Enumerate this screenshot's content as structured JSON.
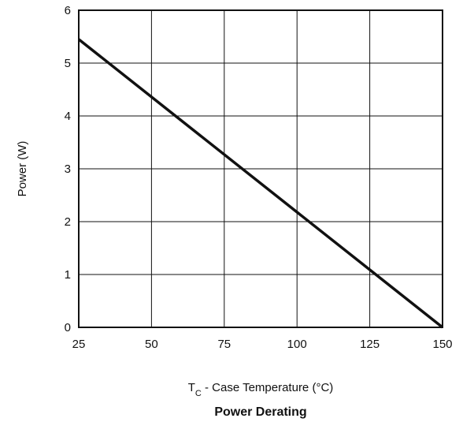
{
  "chart_data": {
    "type": "line",
    "title": "Power Derating",
    "xlabel": {
      "main": "T",
      "sub": "C",
      "rest": " - Case Temperature (°C)"
    },
    "ylabel": "Power (W)",
    "xlim": [
      25,
      150
    ],
    "ylim": [
      0,
      6
    ],
    "xticks": [
      25,
      50,
      75,
      100,
      125,
      150
    ],
    "yticks": [
      0,
      1,
      2,
      3,
      4,
      5,
      6
    ],
    "grid": true,
    "series": [
      {
        "x": [
          25,
          150
        ],
        "y": [
          5.45,
          0
        ]
      }
    ]
  }
}
